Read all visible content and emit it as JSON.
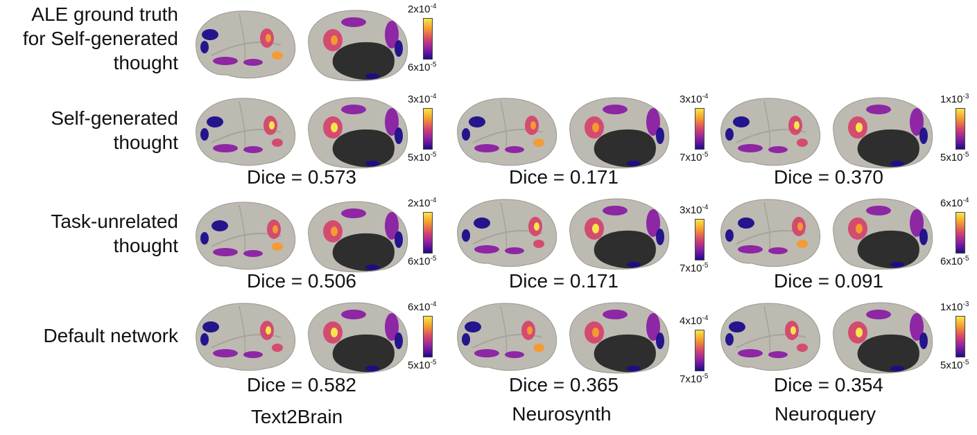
{
  "rows": [
    {
      "label_lines": [
        "ALE ground truth",
        "for Self-generated",
        "thought"
      ]
    },
    {
      "label_lines": [
        "Self-generated",
        "thought"
      ]
    },
    {
      "label_lines": [
        "Task-unrelated",
        "thought"
      ]
    },
    {
      "label_lines": [
        "Default network"
      ]
    }
  ],
  "columns": [
    "Text2Brain",
    "Neurosynth",
    "Neuroquery"
  ],
  "colorbars": [
    {
      "max": "2x10",
      "max_exp": "-4",
      "min": "6x10",
      "min_exp": "-5"
    },
    {
      "max": "3x10",
      "max_exp": "-4",
      "min": "5x10",
      "min_exp": "-5"
    },
    {
      "max": "3x10",
      "max_exp": "-4",
      "min": "7x10",
      "min_exp": "-5"
    },
    {
      "max": "1x10",
      "max_exp": "-3",
      "min": "5x10",
      "min_exp": "-5"
    },
    {
      "max": "2x10",
      "max_exp": "-4",
      "min": "6x10",
      "min_exp": "-5"
    },
    {
      "max": "3x10",
      "max_exp": "-4",
      "min": "7x10",
      "min_exp": "-5"
    },
    {
      "max": "6x10",
      "max_exp": "-4",
      "min": "6x10",
      "min_exp": "-5"
    },
    {
      "max": "6x10",
      "max_exp": "-4",
      "min": "5x10",
      "min_exp": "-5"
    },
    {
      "max": "4x10",
      "max_exp": "-4",
      "min": "7x10",
      "min_exp": "-5"
    },
    {
      "max": "1x10",
      "max_exp": "-3",
      "min": "5x10",
      "min_exp": "-5"
    }
  ],
  "dice": [
    [
      "Dice = 0.573",
      "Dice = 0.171",
      "Dice = 0.370"
    ],
    [
      "Dice = 0.506",
      "Dice = 0.171",
      "Dice = 0.091"
    ],
    [
      "Dice = 0.582",
      "Dice = 0.365",
      "Dice = 0.354"
    ]
  ],
  "colormap": [
    "#1c0c8a",
    "#8a1fa3",
    "#d5456d",
    "#f59a2e",
    "#f7e64a"
  ],
  "cortex_color": "#bdbab2",
  "medial_wall_color": "#2e2e2e"
}
